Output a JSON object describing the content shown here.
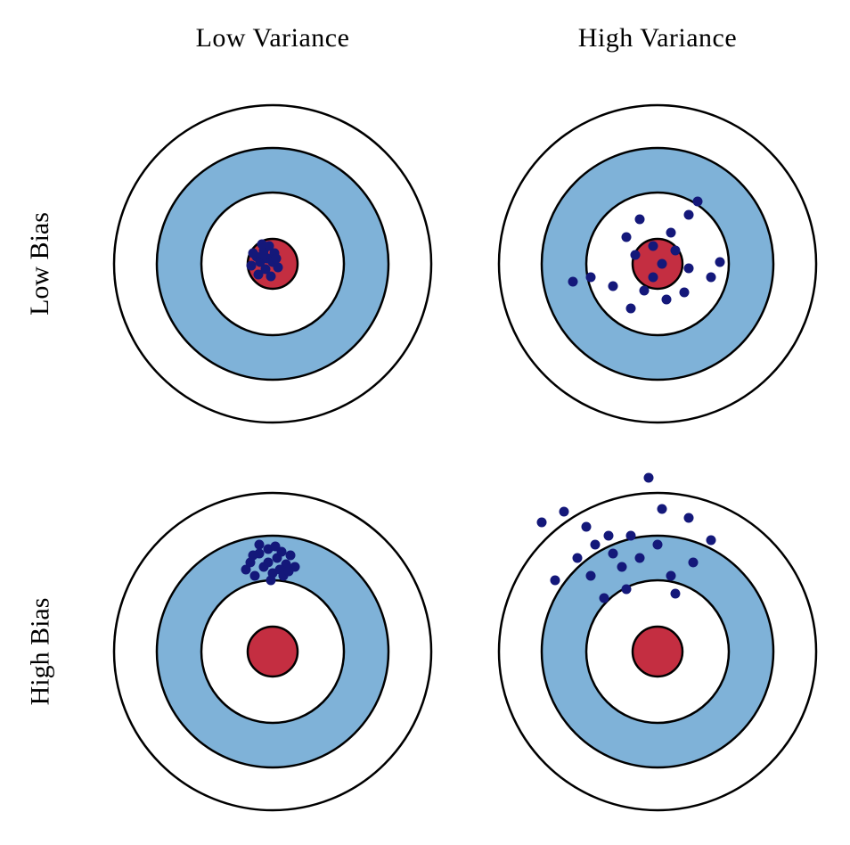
{
  "diagram": {
    "col_labels": [
      "Low Variance",
      "High Variance"
    ],
    "row_labels": [
      "Low Bias",
      "High Bias"
    ],
    "colors": {
      "blue_ring": "#7FB2D8",
      "bullseye_red": "#C42E41",
      "dot_navy": "#14187A",
      "stroke_black": "#000000",
      "background": "#FFFFFF"
    },
    "stroke_width": 2.5,
    "dot_radius": 5.5,
    "rings": [
      {
        "name": "outer-ring",
        "radius": 178,
        "fill": "#FFFFFF"
      },
      {
        "name": "blue-ring",
        "radius": 130,
        "fill": "#7FB2D8"
      },
      {
        "name": "inner-white-ring",
        "radius": 80,
        "fill": "#FFFFFF"
      },
      {
        "name": "bullseye",
        "radius": 28,
        "fill": "#C42E41"
      }
    ],
    "targets": [
      {
        "id": "low-bias-low-variance",
        "row_label": "Low Bias",
        "col_label": "Low Variance",
        "dots": [
          [
            -18,
            -8
          ],
          [
            -10,
            -15
          ],
          [
            -4,
            -20
          ],
          [
            -14,
            -2
          ],
          [
            -22,
            -12
          ],
          [
            -6,
            -6
          ],
          [
            2,
            -12
          ],
          [
            -12,
            -22
          ],
          [
            0,
            -2
          ],
          [
            -8,
            6
          ],
          [
            -16,
            12
          ],
          [
            -2,
            14
          ],
          [
            6,
            4
          ],
          [
            -24,
            2
          ],
          [
            -10,
            -10
          ],
          [
            4,
            -6
          ]
        ]
      },
      {
        "id": "low-bias-high-variance",
        "row_label": "Low Bias",
        "col_label": "High Variance",
        "dots": [
          [
            45,
            -70
          ],
          [
            35,
            -55
          ],
          [
            -20,
            -50
          ],
          [
            15,
            -35
          ],
          [
            -35,
            -30
          ],
          [
            -5,
            -20
          ],
          [
            20,
            -15
          ],
          [
            -25,
            -10
          ],
          [
            5,
            0
          ],
          [
            35,
            5
          ],
          [
            60,
            15
          ],
          [
            70,
            -2
          ],
          [
            -75,
            15
          ],
          [
            -95,
            20
          ],
          [
            -50,
            25
          ],
          [
            -15,
            30
          ],
          [
            10,
            40
          ],
          [
            -30,
            50
          ],
          [
            30,
            32
          ],
          [
            -5,
            15
          ]
        ]
      },
      {
        "id": "high-bias-low-variance",
        "row_label": "High Bias",
        "col_label": "Low Variance",
        "dots": [
          [
            -25,
            -100
          ],
          [
            -15,
            -110
          ],
          [
            -5,
            -115
          ],
          [
            5,
            -105
          ],
          [
            15,
            -98
          ],
          [
            -10,
            -95
          ],
          [
            0,
            -88
          ],
          [
            -20,
            -85
          ],
          [
            10,
            -112
          ],
          [
            20,
            -108
          ],
          [
            -30,
            -92
          ],
          [
            -5,
            -100
          ],
          [
            8,
            -92
          ],
          [
            -15,
            -120
          ],
          [
            25,
            -95
          ],
          [
            -2,
            -80
          ],
          [
            12,
            -85
          ],
          [
            -22,
            -108
          ],
          [
            3,
            -118
          ],
          [
            18,
            -90
          ]
        ]
      },
      {
        "id": "high-bias-high-variance",
        "row_label": "High Bias",
        "col_label": "High Variance",
        "dots": [
          [
            -10,
            -195
          ],
          [
            -105,
            -157
          ],
          [
            -130,
            -145
          ],
          [
            -80,
            -140
          ],
          [
            -70,
            -120
          ],
          [
            -30,
            -130
          ],
          [
            -50,
            -110
          ],
          [
            -90,
            -105
          ],
          [
            -115,
            -80
          ],
          [
            -75,
            -85
          ],
          [
            -40,
            -95
          ],
          [
            -20,
            -105
          ],
          [
            0,
            -120
          ],
          [
            15,
            -85
          ],
          [
            35,
            -150
          ],
          [
            60,
            -125
          ],
          [
            20,
            -65
          ],
          [
            -35,
            -70
          ],
          [
            -60,
            -60
          ],
          [
            5,
            -160
          ],
          [
            -55,
            -130
          ],
          [
            40,
            -100
          ]
        ]
      }
    ]
  }
}
